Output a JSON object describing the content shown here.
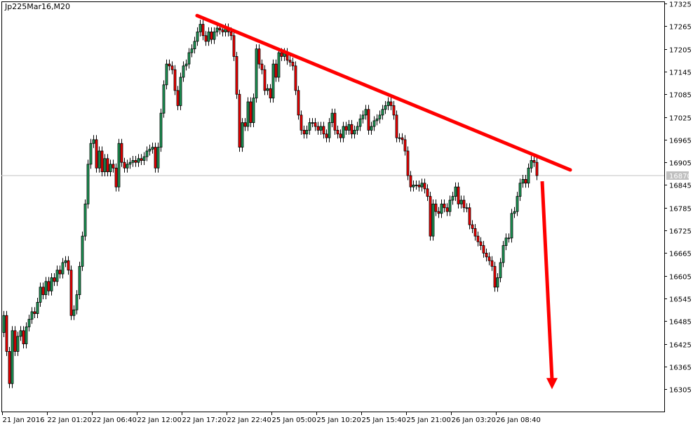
{
  "symbol_title": "Jp225Mar16,M20",
  "colors": {
    "bull": "#1e9e5a",
    "bear": "#ff0000",
    "outline": "#000000",
    "annotation": "#ff0000",
    "price_line": "#c0c0c0",
    "price_label_bg": "#c0c0c0"
  },
  "chart_data": {
    "type": "candlestick",
    "title": "Jp225Mar16,M20",
    "ylim": [
      16275,
      17340
    ],
    "y_ticks": [
      17325,
      17265,
      17205,
      17145,
      17085,
      17025,
      16965,
      16905,
      16845,
      16785,
      16725,
      16665,
      16605,
      16545,
      16485,
      16425,
      16365,
      16305
    ],
    "x_tick_labels": [
      "21 Jan 2016",
      "22 Jan 01:20",
      "22 Jan 06:40",
      "22 Jan 12:00",
      "22 Jan 17:20",
      "22 Jan 22:40",
      "25 Jan 05:00",
      "25 Jan 10:20",
      "25 Jan 15:40",
      "25 Jan 21:00",
      "26 Jan 03:20",
      "26 Jan 08:40"
    ],
    "bars_per_x_tick": 16,
    "current_price": 16870,
    "first_open": 16455,
    "close": [
      16500,
      16405,
      16320,
      16460,
      16405,
      16445,
      16460,
      16425,
      16470,
      16490,
      16510,
      16505,
      16535,
      16575,
      16555,
      16590,
      16565,
      16600,
      16590,
      16620,
      16610,
      16640,
      16645,
      16620,
      16500,
      16515,
      16555,
      16630,
      16710,
      16795,
      16900,
      16955,
      16965,
      16890,
      16935,
      16880,
      16915,
      16880,
      16900,
      16890,
      16840,
      16955,
      16905,
      16890,
      16900,
      16905,
      16910,
      16905,
      16915,
      16910,
      16920,
      16935,
      16940,
      16945,
      16890,
      16945,
      17035,
      17110,
      17165,
      17160,
      17150,
      17095,
      17055,
      17130,
      17160,
      17165,
      17195,
      17205,
      17225,
      17250,
      17270,
      17240,
      17225,
      17250,
      17230,
      17250,
      17260,
      17255,
      17250,
      17260,
      17250,
      17240,
      17185,
      17085,
      16945,
      17010,
      17000,
      17065,
      17010,
      17075,
      17205,
      17165,
      17150,
      17095,
      17100,
      17075,
      17165,
      17130,
      17195,
      17185,
      17195,
      17175,
      17170,
      17160,
      17095,
      17030,
      16990,
      16980,
      16990,
      17010,
      17010,
      17000,
      16990,
      17000,
      16980,
      16970,
      17010,
      17035,
      16990,
      16980,
      16970,
      17000,
      16990,
      17005,
      16980,
      16990,
      17000,
      17020,
      17030,
      17045,
      16990,
      17000,
      17015,
      17020,
      17030,
      17045,
      17055,
      17065,
      17055,
      17030,
      16970,
      16970,
      16965,
      16935,
      16870,
      16840,
      16845,
      16845,
      16840,
      16850,
      16835,
      16815,
      16710,
      16795,
      16775,
      16770,
      16795,
      16785,
      16775,
      16805,
      16815,
      16840,
      16795,
      16805,
      16785,
      16785,
      16740,
      16730,
      16710,
      16695,
      16685,
      16665,
      16655,
      16645,
      16630,
      16575,
      16600,
      16640,
      16685,
      16705,
      16705,
      16770,
      16775,
      16815,
      16850,
      16860,
      16850,
      16890,
      16910,
      16905,
      16870
    ],
    "annotations": {
      "trendline": {
        "from": {
          "bar": 69,
          "price": 17293
        },
        "to": {
          "bar": 202,
          "price": 16885
        }
      },
      "arrow_down": {
        "from": {
          "bar": 192,
          "price": 16855
        },
        "to": {
          "bar": 195.5,
          "price": 16305
        }
      }
    }
  }
}
